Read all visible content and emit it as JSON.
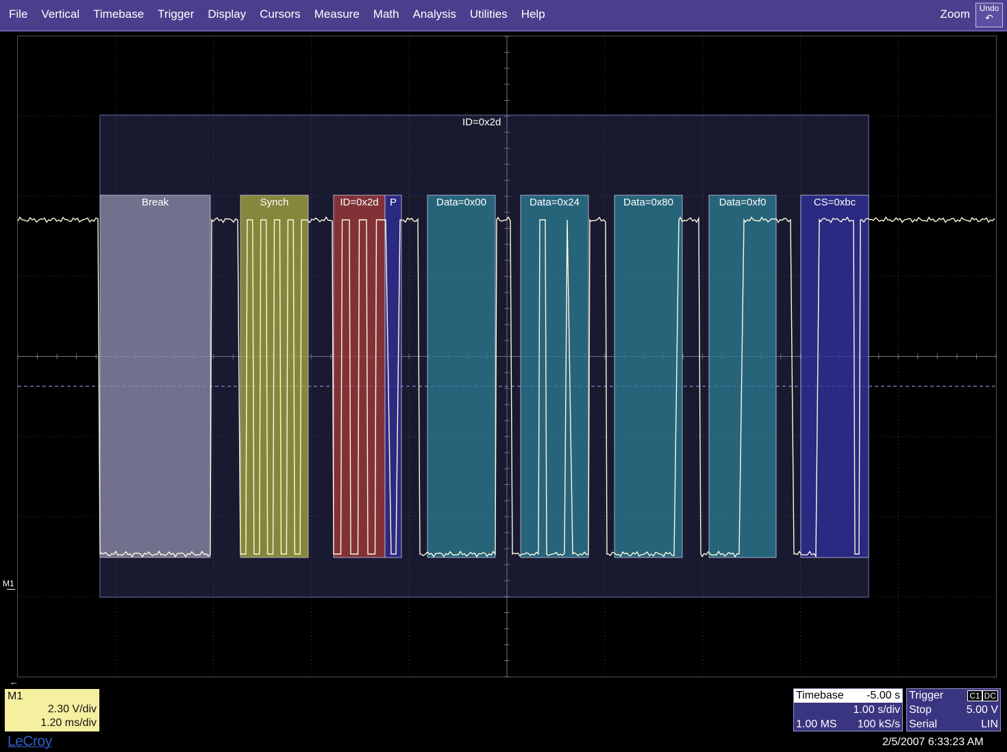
{
  "menu": {
    "items": [
      "File",
      "Vertical",
      "Timebase",
      "Trigger",
      "Display",
      "Cursors",
      "Measure",
      "Math",
      "Analysis",
      "Utilities",
      "Help"
    ],
    "zoom_label": "Zoom",
    "undo_label": "Undo",
    "undo_icon": "undo-arrow-icon"
  },
  "waveform": {
    "frame_label": "ID=0x2d",
    "trace_label": "M1",
    "decode_segments": [
      {
        "label": "Break",
        "color": "#8a8aa8"
      },
      {
        "label": "Synch",
        "color": "#a6a640"
      },
      {
        "label": "ID=0x2d",
        "color": "#a03a3a"
      },
      {
        "label": "P",
        "color": "#2f2f9a"
      },
      {
        "label": "Data=0x00",
        "color": "#2a7a90"
      },
      {
        "label": "Data=0x24",
        "color": "#2a7a90"
      },
      {
        "label": "Data=0x80",
        "color": "#2a7a90"
      },
      {
        "label": "Data=0xf0",
        "color": "#2a7a90"
      },
      {
        "label": "CS=0xbc",
        "color": "#2f2f9a"
      }
    ]
  },
  "m1_box": {
    "title": "M1",
    "volts_per_div": "2.30 V/div",
    "time_per_div": "1.20 ms/div"
  },
  "timebase": {
    "label": "Timebase",
    "delay": "-5.00 s",
    "scale": "1.00 s/div",
    "samples": "1.00 MS",
    "rate": "100 kS/s"
  },
  "trigger": {
    "label": "Trigger",
    "channel": "C1",
    "coupling": "DC",
    "mode": "Stop",
    "level": "5.00 V",
    "type": "Serial",
    "slope": "LIN"
  },
  "brand": "LeCroy",
  "datetime": "2/5/2007 6:33:23 AM",
  "colors": {
    "menubar": "#4a3f8c",
    "trace": "#fffbe0",
    "m1_box": "#f5f0a0",
    "info_box": "#3a3580"
  }
}
